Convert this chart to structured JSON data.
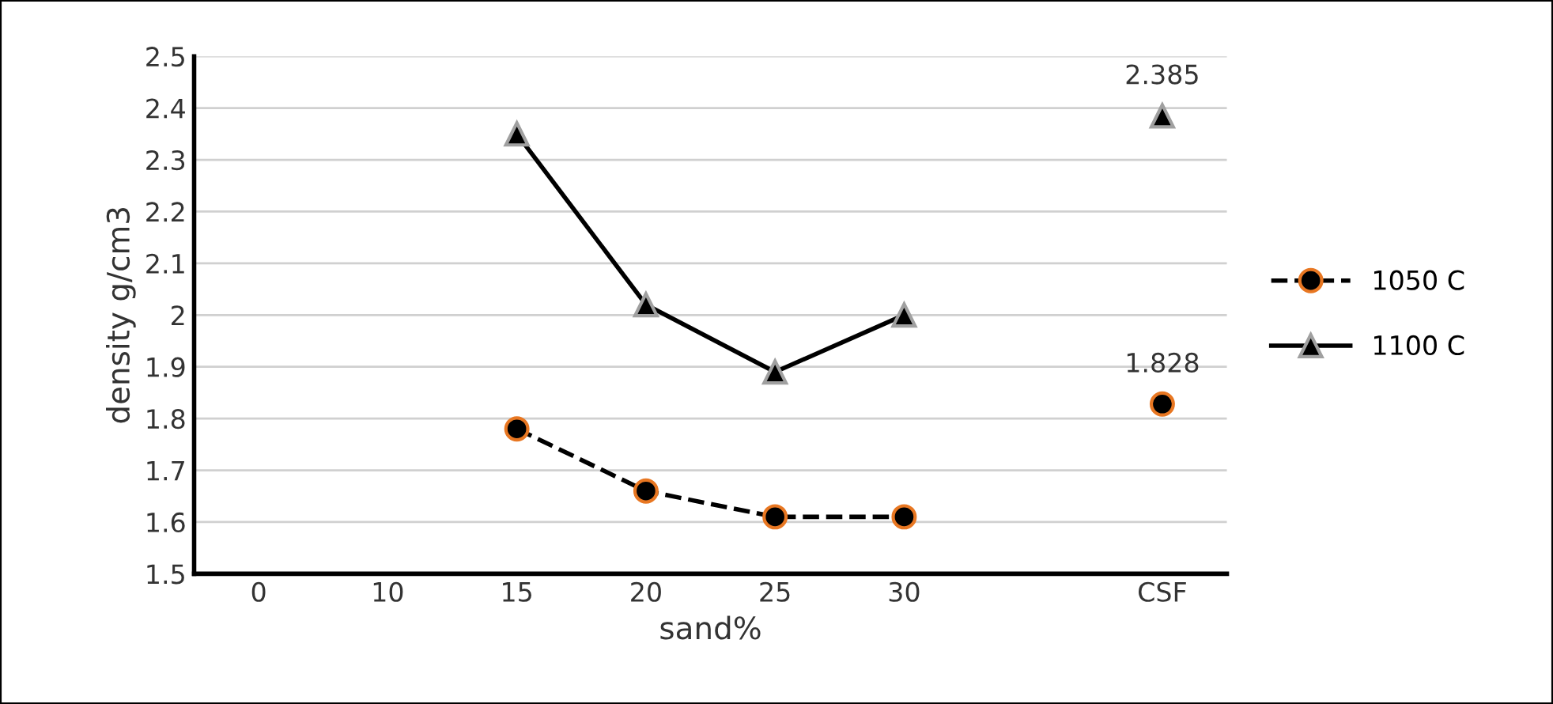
{
  "chart_data": {
    "type": "line",
    "xlabel": "sand%",
    "ylabel": "density g/cm3",
    "categories": [
      "0",
      "10",
      "15",
      "20",
      "25",
      "30",
      null,
      "CSF"
    ],
    "series": [
      {
        "name": "1050 C",
        "color": "#000000",
        "line_style": "dashed",
        "marker": "circle",
        "values": [
          null,
          null,
          1.78,
          1.66,
          1.61,
          1.61,
          null,
          1.828
        ],
        "value_labels": [
          null,
          null,
          null,
          null,
          null,
          null,
          null,
          "1.828"
        ]
      },
      {
        "name": "1100 C",
        "color": "#000000",
        "line_style": "solid",
        "marker": "triangle",
        "values": [
          null,
          null,
          2.35,
          2.02,
          1.89,
          2.0,
          null,
          2.385
        ],
        "value_labels": [
          null,
          null,
          null,
          null,
          null,
          null,
          null,
          "2.385"
        ]
      }
    ],
    "ylim": [
      1.5,
      2.5
    ],
    "yticks": [
      1.5,
      1.6,
      1.7,
      1.8,
      1.9,
      2,
      2.1,
      2.2,
      2.3,
      2.4,
      2.5
    ],
    "grid": "y",
    "legend": "right"
  }
}
